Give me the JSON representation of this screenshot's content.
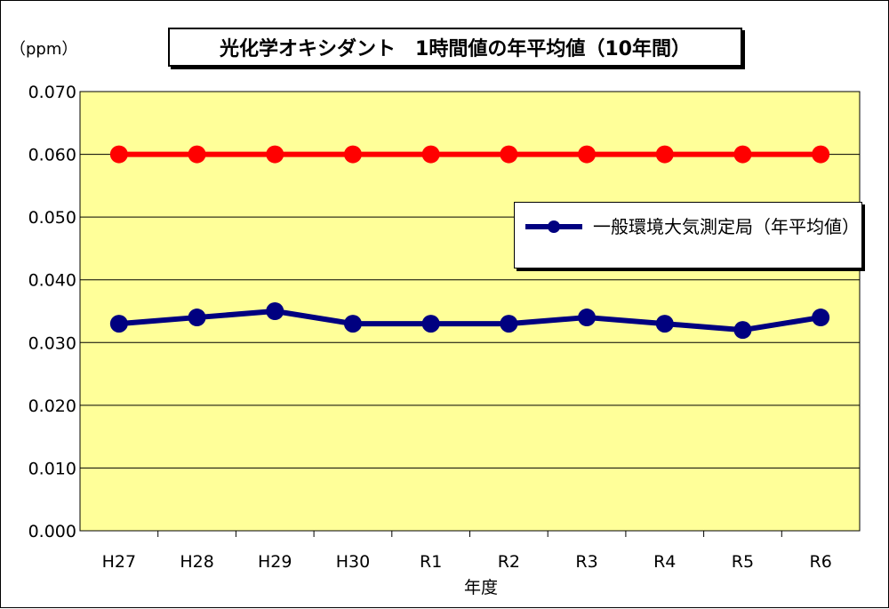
{
  "chart_data": {
    "type": "line",
    "title": "光化学オキシダント　1時間値の年平均値（10年間）",
    "ylabel": "（ppm）",
    "xlabel": "年度",
    "categories": [
      "H27",
      "H28",
      "H29",
      "H30",
      "R1",
      "R2",
      "R3",
      "R4",
      "R5",
      "R6"
    ],
    "ylim": [
      0,
      0.07
    ],
    "yticks": [
      "0.000",
      "0.010",
      "0.020",
      "0.030",
      "0.040",
      "0.050",
      "0.060",
      "0.070"
    ],
    "grid": true,
    "legend_position": "right",
    "plot_background": "#ffff99",
    "series": [
      {
        "name": "一般環境大気測定局（年平均値）",
        "color": "#000080",
        "values": [
          0.033,
          0.034,
          0.035,
          0.033,
          0.033,
          0.033,
          0.034,
          0.033,
          0.032,
          0.034
        ]
      },
      {
        "name": "",
        "color": "#ff0000",
        "values": [
          0.06,
          0.06,
          0.06,
          0.06,
          0.06,
          0.06,
          0.06,
          0.06,
          0.06,
          0.06
        ]
      }
    ]
  }
}
